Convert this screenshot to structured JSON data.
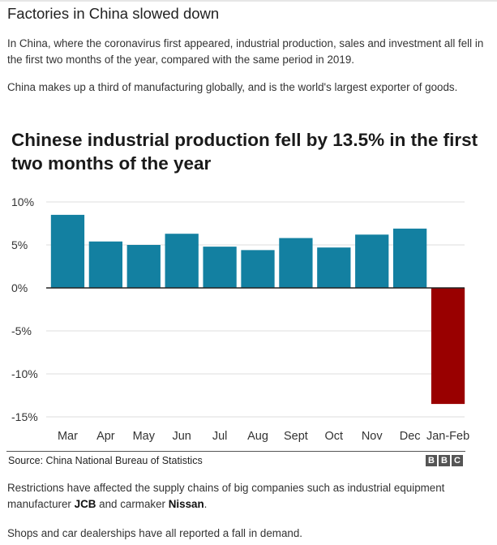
{
  "headline": "Factories in China slowed down",
  "paragraph1": "In China, where the coronavirus first appeared, industrial production, sales and investment all fell in the first two months of the year, compared with the same period in 2019.",
  "paragraph2": "China makes up a third of manufacturing globally, and is the world's largest exporter of goods.",
  "paragraph3": {
    "text_before": "Restrictions have affected the supply chains of big companies such as industrial equipment manufacturer ",
    "company1": "JCB",
    "text_middle": " and carmaker ",
    "company2": "Nissan",
    "text_after": "."
  },
  "paragraph4": "Shops and car dealerships have all reported a fall in demand.",
  "source": "Source: China National Bureau of Statistics",
  "logo_letters": [
    "B",
    "B",
    "C"
  ],
  "chart_data": {
    "type": "bar",
    "title": "Chinese industrial production fell by 13.5% in the first two months of the year",
    "categories": [
      "Mar",
      "Apr",
      "May",
      "Jun",
      "Jul",
      "Aug",
      "Sept",
      "Oct",
      "Nov",
      "Dec",
      "Jan-Feb"
    ],
    "values": [
      8.5,
      5.4,
      5.0,
      6.3,
      4.8,
      4.4,
      5.8,
      4.7,
      6.2,
      6.9,
      -13.5
    ],
    "ylim": [
      -15,
      10
    ],
    "yticks": [
      10,
      5,
      0,
      -5,
      -10,
      -15
    ],
    "ytick_labels": [
      "10%",
      "5%",
      "0%",
      "-5%",
      "-10%",
      "-15%"
    ],
    "grid": true,
    "colors": {
      "positive": "#1380A1",
      "negative": "#990000",
      "grid": "#dddddd",
      "zero_line": "#222222"
    }
  }
}
